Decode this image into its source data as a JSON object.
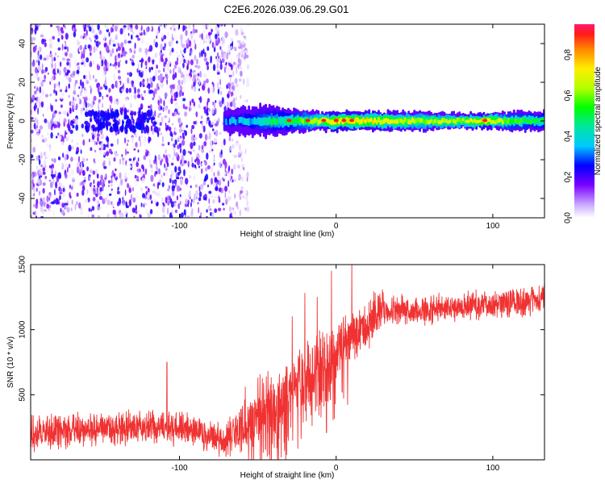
{
  "title": "C2E6.2026.039.06.29.G01",
  "colors": {
    "snr_line": "#f03232",
    "spectro_dot": "#6a1cf0",
    "axis": "#000000"
  },
  "chart_data": [
    {
      "type": "heatmap",
      "name": "spectrogram",
      "xlabel": "Height of straight line (km)",
      "ylabel": "Frequency (Hz)",
      "xlim": [
        -195,
        133
      ],
      "ylim": [
        -50,
        50
      ],
      "xticks": [
        -100,
        0,
        100
      ],
      "xtick_labels": [
        "-100",
        "0",
        "100"
      ],
      "yticks": [
        -40,
        -20,
        0,
        20,
        40
      ],
      "ytick_labels": [
        "-40",
        "-20",
        "0",
        "20",
        "40"
      ],
      "noise_region_x": [
        -195,
        -62
      ],
      "signal_band": [
        {
          "x": -72,
          "amp": 0.3,
          "width": 6
        },
        {
          "x": -60,
          "amp": 0.35,
          "width": 7
        },
        {
          "x": -45,
          "amp": 0.45,
          "width": 8
        },
        {
          "x": -30,
          "amp": 0.55,
          "width": 6
        },
        {
          "x": -15,
          "amp": 0.7,
          "width": 5
        },
        {
          "x": 0,
          "amp": 0.85,
          "width": 5
        },
        {
          "x": 20,
          "amp": 0.8,
          "width": 5
        },
        {
          "x": 50,
          "amp": 0.7,
          "width": 5
        },
        {
          "x": 80,
          "amp": 0.72,
          "width": 4
        },
        {
          "x": 95,
          "amp": 0.85,
          "width": 4
        },
        {
          "x": 110,
          "amp": 0.6,
          "width": 5
        },
        {
          "x": 133,
          "amp": 0.55,
          "width": 5
        }
      ],
      "colorbar": {
        "label": "Normalized spectral amplitude",
        "range": [
          0,
          0.95
        ],
        "ticks": [
          0.0,
          0.2,
          0.4,
          0.6,
          0.8
        ],
        "tick_labels": [
          "0.0",
          "0.2",
          "0.4",
          "0.6",
          "0.8"
        ]
      }
    },
    {
      "type": "line",
      "name": "snr",
      "xlabel": "Height of straight line (km)",
      "ylabel": "SNR (10 * v/v)",
      "xlim": [
        -195,
        133
      ],
      "ylim": [
        0,
        1500
      ],
      "xticks": [
        -100,
        0,
        100
      ],
      "xtick_labels": [
        "-100",
        "0",
        "100"
      ],
      "yticks": [
        500,
        1000,
        1500
      ],
      "ytick_labels": [
        "500",
        "1000",
        "1500"
      ],
      "series": [
        {
          "name": "SNR",
          "x": [
            -195,
            -180,
            -160,
            -140,
            -120,
            -100,
            -90,
            -80,
            -70,
            -60,
            -50,
            -40,
            -30,
            -20,
            -10,
            0,
            10,
            20,
            30,
            40,
            60,
            80,
            100,
            120,
            133
          ],
          "y": [
            200,
            220,
            230,
            240,
            250,
            240,
            210,
            160,
            160,
            250,
            320,
            400,
            500,
            600,
            700,
            800,
            950,
            1050,
            1150,
            1150,
            1150,
            1180,
            1200,
            1220,
            1230
          ]
        }
      ],
      "spikes": [
        {
          "x": -108,
          "y": 750
        },
        {
          "x": -58,
          "y": 560
        },
        {
          "x": -28,
          "y": 1100
        },
        {
          "x": -20,
          "y": 1280
        },
        {
          "x": -12,
          "y": 1250
        },
        {
          "x": -3,
          "y": 1450
        },
        {
          "x": 10,
          "y": 1530
        }
      ]
    }
  ]
}
